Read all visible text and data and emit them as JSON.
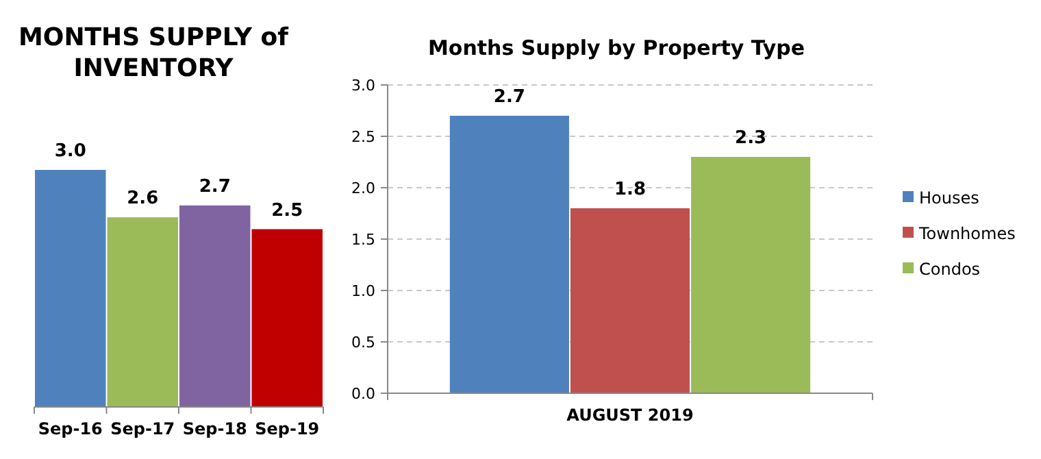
{
  "chart_data": [
    {
      "type": "bar",
      "title": "MONTHS SUPPLY of INVENTORY",
      "categories": [
        "Sep-16",
        "Sep-17",
        "Sep-18",
        "Sep-19"
      ],
      "values": [
        3.0,
        2.6,
        2.7,
        2.5
      ],
      "colors": [
        "#4f81bd",
        "#9bbb59",
        "#8064a2",
        "#c00000"
      ],
      "value_labels": [
        "3.0",
        "2.6",
        "2.7",
        "2.5"
      ],
      "ylim": [
        1.0,
        3.0
      ],
      "tick_labels": "x"
    },
    {
      "type": "bar",
      "title": "Months Supply by Property Type",
      "categories": [
        "AUGUST 2019"
      ],
      "series": [
        {
          "name": "Houses",
          "color": "#4f81bd",
          "values": [
            2.7
          ]
        },
        {
          "name": "Townhomes",
          "color": "#c0504d",
          "values": [
            1.8
          ]
        },
        {
          "name": "Condos",
          "color": "#9bbb59",
          "values": [
            2.3
          ]
        }
      ],
      "ylim": [
        0,
        3.0
      ],
      "yticks": [
        {
          "value": 0,
          "label": "0.0"
        },
        {
          "value": 0.5,
          "label": "0.5"
        },
        {
          "value": 1,
          "label": "1.0"
        },
        {
          "value": 1.5,
          "label": "1.5"
        },
        {
          "value": 2,
          "label": "2.0"
        },
        {
          "value": 2.5,
          "label": "2.5"
        },
        {
          "value": 3,
          "label": "3.0"
        }
      ],
      "grid": "y",
      "legend": "right",
      "data_labels": true
    }
  ]
}
